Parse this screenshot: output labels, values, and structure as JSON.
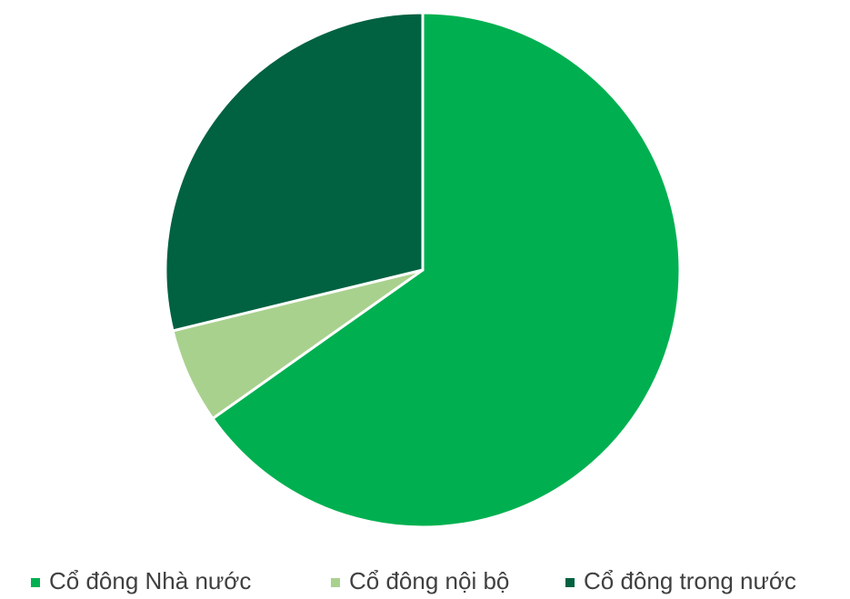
{
  "chart_data": {
    "type": "pie",
    "categories": [
      "Cổ đông Nhà nước",
      "Cổ đông nội bộ",
      "Cổ đông trong nước"
    ],
    "values": [
      65.2,
      6.0,
      28.8
    ],
    "colors": [
      "#00b050",
      "#a9d18e",
      "#006241"
    ],
    "legend": "bottom"
  }
}
